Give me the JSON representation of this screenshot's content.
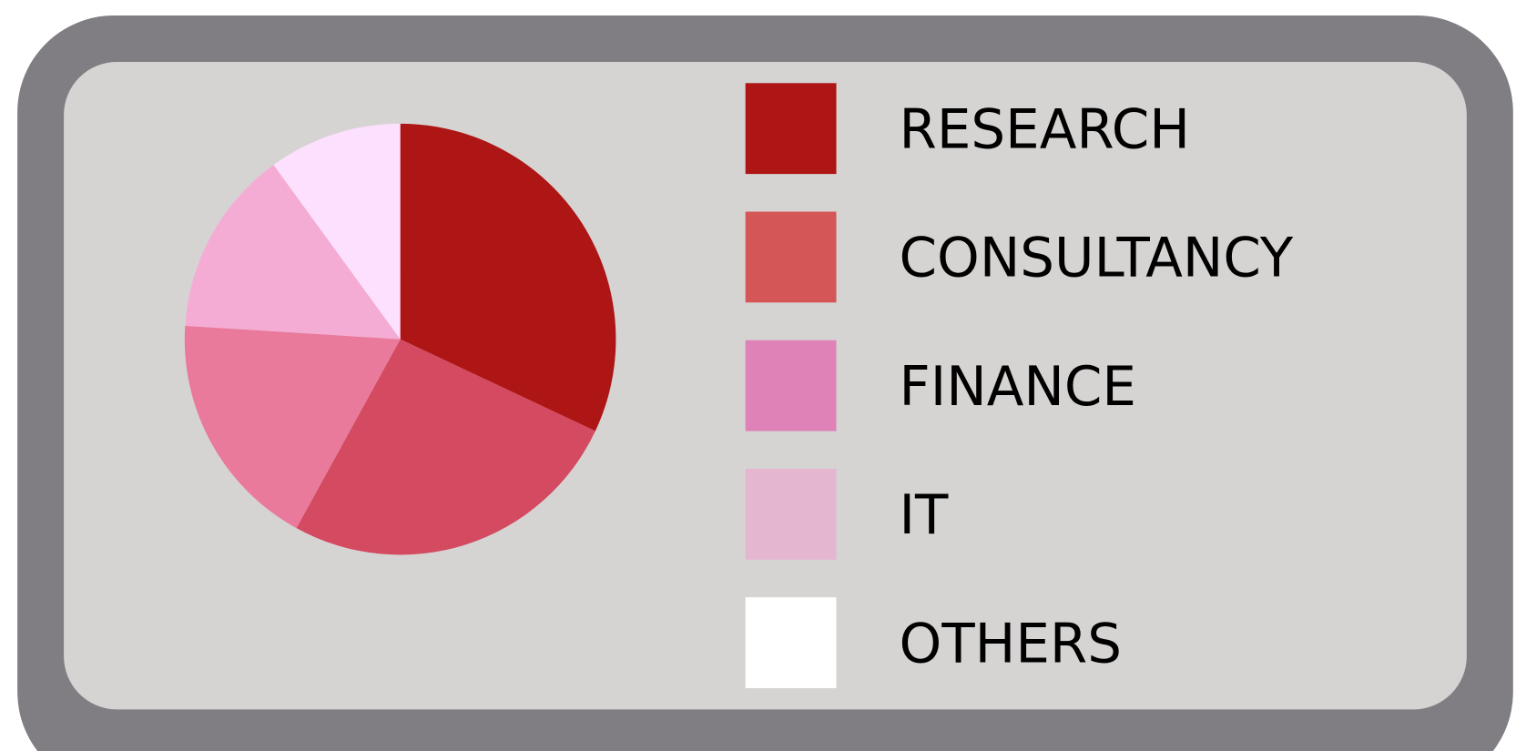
{
  "chart_data": {
    "type": "pie",
    "categories": [
      "RESEARCH",
      "CONSULTANCY",
      "FINANCE",
      "IT",
      "OTHERS"
    ],
    "values": [
      32,
      26,
      18,
      14,
      10
    ],
    "colors": [
      "#ae1515",
      "#d44a60",
      "#e97a9c",
      "#f5acd4",
      "#fde0fd"
    ],
    "legend_colors": [
      "#ae1515",
      "#d45656",
      "#de82b8",
      "#e4b6d0",
      "#ffffff"
    ],
    "legend": "right"
  }
}
